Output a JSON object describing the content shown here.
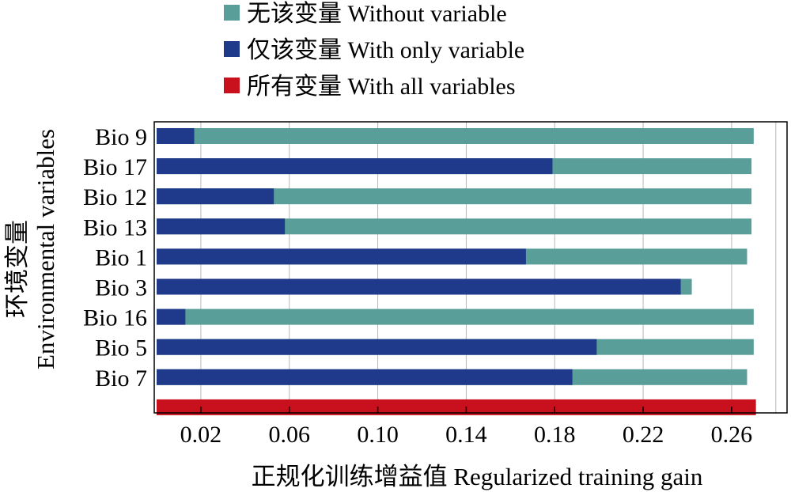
{
  "chart_data": {
    "type": "bar",
    "orientation": "horizontal",
    "ylabel_line1": "环境变量",
    "ylabel_line2": "Environmental variables",
    "xlabel": "正规化训练增益值 Regularized training gain",
    "categories": [
      "Bio 9",
      "Bio 17",
      "Bio 12",
      "Bio 13",
      "Bio 1",
      "Bio 3",
      "Bio 16",
      "Bio 5",
      "Bio 7"
    ],
    "series": [
      {
        "name": "无该变量 Without variable",
        "color": "#5a9e9a",
        "values": [
          0.27,
          0.269,
          0.269,
          0.269,
          0.267,
          0.242,
          0.27,
          0.27,
          0.267
        ]
      },
      {
        "name": "仅该变量 With only variable",
        "color": "#1f3a8a",
        "values": [
          0.017,
          0.179,
          0.053,
          0.058,
          0.167,
          0.237,
          0.013,
          0.199,
          0.188
        ]
      },
      {
        "name": "所有变量 With all variables",
        "color": "#c8111c",
        "value": 0.271
      }
    ],
    "x_ticks": [
      "0.02",
      "0.06",
      "0.10",
      "0.14",
      "0.18",
      "0.22",
      "0.26"
    ],
    "xlim": [
      0.0,
      0.284
    ],
    "grid": "vertical",
    "legend_position": "top"
  }
}
